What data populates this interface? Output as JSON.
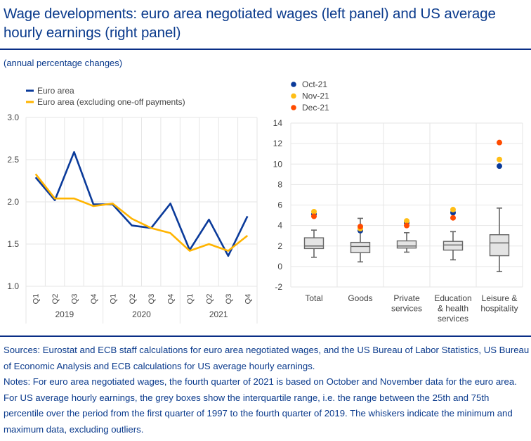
{
  "header": {
    "title": "Wage developments: euro area negotiated wages (left panel) and US average hourly earnings (right panel)",
    "subtitle": "(annual percentage changes)"
  },
  "footer": {
    "sources": "Sources: Eurostat and ECB staff calculations for euro area negotiated wages, and the US Bureau of Labor Statistics, US Bureau of Economic Analysis and ECB calculations for US average hourly earnings.",
    "notes": "Notes: For euro area negotiated wages, the fourth quarter of 2021 is based on October and November data for the euro area. For US average hourly earnings, the grey boxes show the interquartile range, i.e. the range between the 25th and 75th percentile over the period from the first quarter of 1997 to the fourth quarter of 2019. The whiskers indicate the minimum and maximum data, excluding outliers."
  },
  "colors": {
    "title": "#0a3a8c",
    "rule": "#0a2e86",
    "euro_area": "#0a3a9a",
    "euro_area_excl": "#ffb400",
    "oct21": "#0a3a9a",
    "nov21": "#ffbe16",
    "dec21": "#ff4b00",
    "box_fill": "#e4e4e4",
    "box_stroke": "#666666",
    "grid": "#e6e6e6"
  },
  "chart_data": [
    {
      "type": "line",
      "title": "Euro area negotiated wages",
      "xlabel": "",
      "ylabel": "",
      "ylim": [
        1.0,
        3.0
      ],
      "yticks": [
        1.0,
        1.5,
        2.0,
        2.5,
        3.0
      ],
      "ytick_labels": [
        "1.0",
        "1.5",
        "2.0",
        "2.5",
        "3.0"
      ],
      "grid": true,
      "legend_position": "top-left",
      "x": [
        "Q1",
        "Q2",
        "Q3",
        "Q4",
        "Q1",
        "Q2",
        "Q3",
        "Q4",
        "Q1",
        "Q2",
        "Q3",
        "Q4"
      ],
      "x_groups": [
        {
          "label": "2019",
          "count": 4
        },
        {
          "label": "2020",
          "count": 4
        },
        {
          "label": "2021",
          "count": 4
        }
      ],
      "series": [
        {
          "name": "Euro area",
          "values": [
            2.29,
            2.02,
            2.59,
            1.97,
            1.97,
            1.72,
            1.69,
            1.98,
            1.43,
            1.79,
            1.36,
            1.83
          ]
        },
        {
          "name": "Euro area (excluding one-off payments)",
          "values": [
            2.33,
            2.04,
            2.04,
            1.95,
            1.98,
            1.8,
            1.69,
            1.63,
            1.42,
            1.5,
            1.42,
            1.6
          ]
        }
      ]
    },
    {
      "type": "box",
      "title": "US average hourly earnings",
      "xlabel": "",
      "ylabel": "",
      "ylim": [
        -2,
        14
      ],
      "yticks": [
        -2,
        0,
        2,
        4,
        6,
        8,
        10,
        12,
        14
      ],
      "ytick_labels": [
        "-2",
        "0",
        "2",
        "4",
        "6",
        "8",
        "10",
        "12",
        "14"
      ],
      "grid": true,
      "legend_position": "top-left",
      "categories": [
        [
          "Total"
        ],
        [
          "Goods"
        ],
        [
          "Private",
          "services"
        ],
        [
          "Education",
          "& health",
          "services"
        ],
        [
          "Leisure &",
          "hospitality"
        ]
      ],
      "boxes": [
        {
          "min": 0.9,
          "q1": 1.75,
          "median": 2.0,
          "q3": 2.8,
          "max": 3.55
        },
        {
          "min": 0.45,
          "q1": 1.35,
          "median": 1.95,
          "q3": 2.35,
          "max": 4.7
        },
        {
          "min": 1.4,
          "q1": 1.8,
          "median": 2.0,
          "q3": 2.5,
          "max": 3.3
        },
        {
          "min": 0.65,
          "q1": 1.6,
          "median": 2.1,
          "q3": 2.45,
          "max": 3.4
        },
        {
          "min": -0.5,
          "q1": 1.05,
          "median": 2.3,
          "q3": 3.1,
          "max": 5.7
        }
      ],
      "series": [
        {
          "name": "Oct-21",
          "values": [
            5.1,
            3.5,
            4.25,
            5.25,
            9.8
          ]
        },
        {
          "name": "Nov-21",
          "values": [
            5.35,
            3.7,
            4.45,
            5.55,
            10.45
          ]
        },
        {
          "name": "Dec-21",
          "values": [
            4.9,
            3.9,
            4.0,
            4.75,
            12.1
          ]
        }
      ]
    }
  ]
}
